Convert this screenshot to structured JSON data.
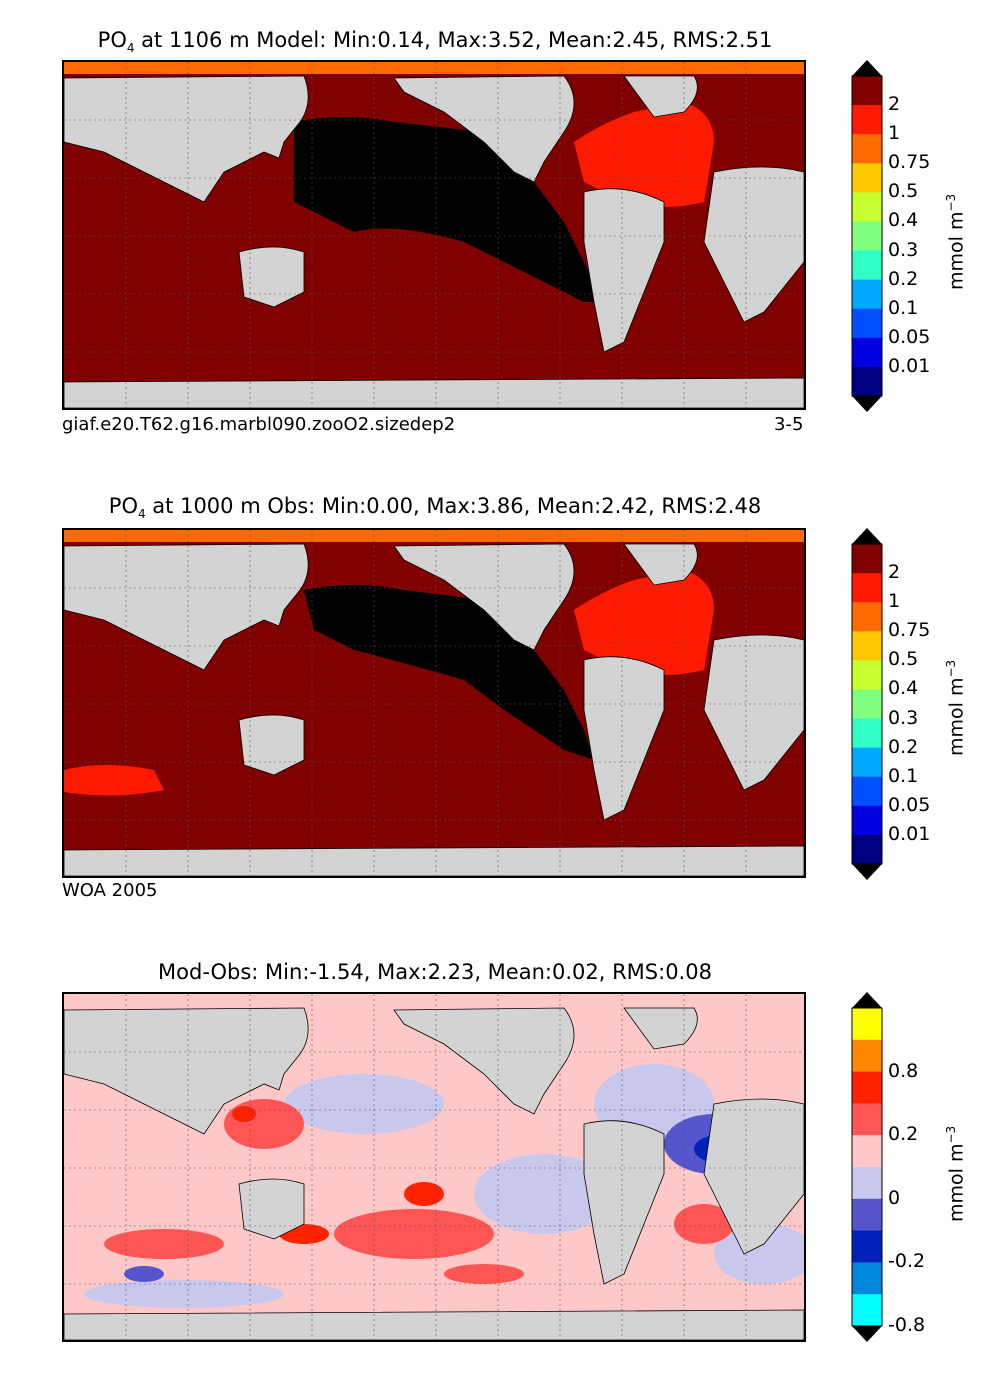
{
  "panels": [
    {
      "title_prefix": "PO",
      "title_sub": "4",
      "title_rest": " at 1106 m Model: Min:0.14, Max:3.52, Mean:2.45, RMS:2.51",
      "footer_left": "giaf.e20.T62.g16.marbl090.zooO2.sizedep2",
      "footer_right": "3-5",
      "colorbar": {
        "ticks": [
          "2",
          "1",
          "0.75",
          "0.5",
          "0.4",
          "0.3",
          "0.2",
          "0.1",
          "0.05",
          "0.01"
        ],
        "colors": [
          "#800000",
          "#ff1a00",
          "#ff6a00",
          "#ffc800",
          "#c8ff30",
          "#80ff80",
          "#30ffc8",
          "#00a8ff",
          "#0050ff",
          "#0000e0",
          "#000080"
        ],
        "over_color": "#000000",
        "under_color": "#000000",
        "unit": "mmol m",
        "unit_sup": "−3"
      }
    },
    {
      "title_prefix": "PO",
      "title_sub": "4",
      "title_rest": " at 1000 m Obs: Min:0.00, Max:3.86, Mean:2.42, RMS:2.48",
      "footer_left": "WOA 2005",
      "footer_right": "",
      "colorbar": {
        "ticks": [
          "2",
          "1",
          "0.75",
          "0.5",
          "0.4",
          "0.3",
          "0.2",
          "0.1",
          "0.05",
          "0.01"
        ],
        "colors": [
          "#800000",
          "#ff1a00",
          "#ff6a00",
          "#ffc800",
          "#c8ff30",
          "#80ff80",
          "#30ffc8",
          "#00a8ff",
          "#0050ff",
          "#0000e0",
          "#000080"
        ],
        "over_color": "#000000",
        "under_color": "#000000",
        "unit": "mmol m",
        "unit_sup": "−3"
      }
    },
    {
      "title_prefix": "",
      "title_sub": "",
      "title_rest": "Mod-Obs: Min:-1.54, Max:2.23, Mean:0.02, RMS:0.08",
      "footer_left": "",
      "footer_right": "",
      "colorbar": {
        "ticks": [
          "0.8",
          "0.2",
          "0",
          "-0.2",
          "-0.8"
        ],
        "colors": [
          "#ffff00",
          "#ff8800",
          "#ff2200",
          "#ff5555",
          "#ffc8c8",
          "#c8c8ee",
          "#5555cc",
          "#0022bb",
          "#0088dd",
          "#00ffff"
        ],
        "over_color": "#000000",
        "under_color": "#000000",
        "unit": "mmol m",
        "unit_sup": "−3"
      }
    }
  ],
  "chart_data": [
    {
      "type": "heatmap",
      "title": "PO4 at 1106 m Model: Min:0.14, Max:3.52, Mean:2.45, RMS:2.51",
      "colorbar_ticks": [
        0.01,
        0.05,
        0.1,
        0.2,
        0.3,
        0.4,
        0.5,
        0.75,
        1,
        2
      ],
      "colorbar_unit": "mmol m^-3",
      "stats": {
        "min": 0.14,
        "max": 3.52,
        "mean": 2.45,
        "rms": 2.51
      },
      "grid": true
    },
    {
      "type": "heatmap",
      "title": "PO4 at 1000 m Obs: Min:0.00, Max:3.86, Mean:2.42, RMS:2.48",
      "colorbar_ticks": [
        0.01,
        0.05,
        0.1,
        0.2,
        0.3,
        0.4,
        0.5,
        0.75,
        1,
        2
      ],
      "colorbar_unit": "mmol m^-3",
      "stats": {
        "min": 0.0,
        "max": 3.86,
        "mean": 2.42,
        "rms": 2.48
      },
      "grid": true
    },
    {
      "type": "heatmap",
      "title": "Mod-Obs: Min:-1.54, Max:2.23, Mean:0.02, RMS:0.08",
      "colorbar_ticks": [
        -0.8,
        -0.2,
        0,
        0.2,
        0.8
      ],
      "colorbar_unit": "mmol m^-3",
      "stats": {
        "min": -1.54,
        "max": 2.23,
        "mean": 0.02,
        "rms": 0.08
      },
      "grid": true
    }
  ]
}
